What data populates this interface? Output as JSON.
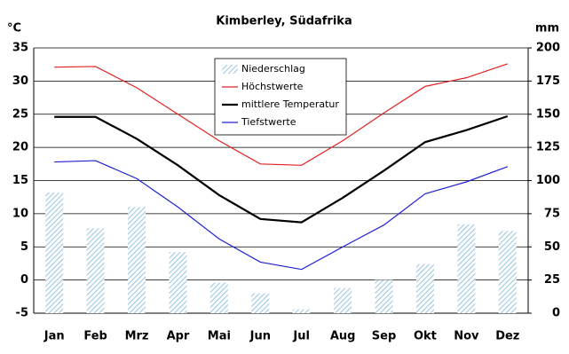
{
  "chart_data": {
    "type": "bar-line",
    "title": "Kimberley, Südafrika",
    "y_label": "°C",
    "y2_label": "mm",
    "categories": [
      "Jan",
      "Feb",
      "Mrz",
      "Apr",
      "Mai",
      "Jun",
      "Jul",
      "Aug",
      "Sep",
      "Okt",
      "Nov",
      "Dez"
    ],
    "ylim": [
      -5,
      35
    ],
    "yticks": [
      -5,
      0,
      5,
      10,
      15,
      20,
      25,
      30,
      35
    ],
    "y2lim": [
      0,
      200
    ],
    "y2ticks": [
      0,
      25,
      50,
      75,
      100,
      125,
      150,
      175,
      200
    ],
    "grid": true,
    "series": [
      {
        "name": "Niederschlag",
        "color": "#9dc8e0",
        "axis": "y2",
        "kind": "bar",
        "values": [
          91,
          64,
          80,
          46,
          23,
          15,
          3,
          19,
          25,
          37,
          67,
          62
        ]
      },
      {
        "name": "Höchstwerte",
        "color": "#e02020",
        "kind": "line",
        "values": [
          32.1,
          32.2,
          29,
          25,
          21,
          17.5,
          17.3,
          21,
          25.2,
          29.2,
          30.5,
          32.6
        ]
      },
      {
        "name": "mittlere Temperatur",
        "color": "#000000",
        "kind": "line",
        "values": [
          24.6,
          24.6,
          21.3,
          17.3,
          12.8,
          9.2,
          8.7,
          12.4,
          16.5,
          20.8,
          22.6,
          24.7
        ]
      },
      {
        "name": "Tiefstwerte",
        "color": "#2020d0",
        "kind": "line",
        "values": [
          17.8,
          18,
          15.3,
          11,
          6.2,
          2.7,
          1.6,
          5,
          8.3,
          13,
          14.8,
          17.1
        ]
      }
    ]
  }
}
